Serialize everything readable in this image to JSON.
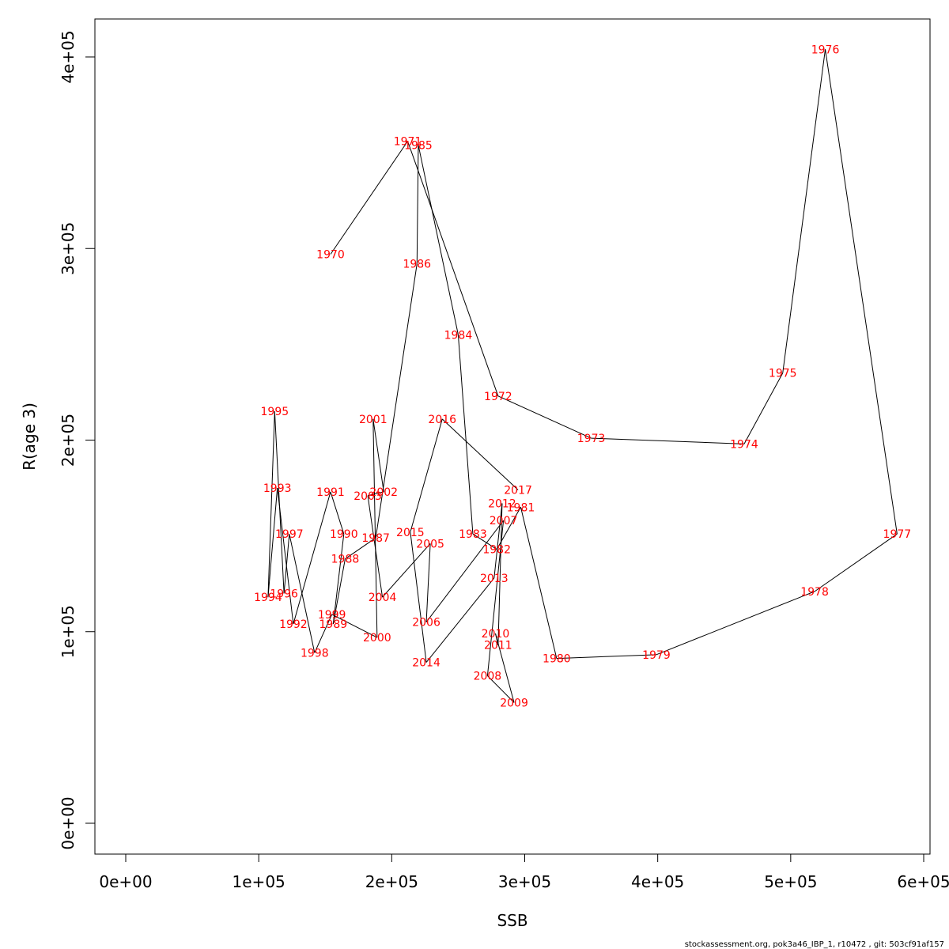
{
  "footer": "stockassessment.org, pok3a46_IBP_1, r10472 , git: 503cf91af157",
  "colors": {
    "points": "#ff0000",
    "line": "#000000",
    "axis": "#000000"
  },
  "chart_data": {
    "type": "line",
    "title": "",
    "xlabel": "SSB",
    "ylabel": "R(age 3)",
    "xlim": [
      0,
      600000
    ],
    "ylim": [
      0,
      400000
    ],
    "x_ticks": [
      0,
      100000,
      200000,
      300000,
      400000,
      500000,
      600000
    ],
    "x_tick_labels": [
      "0e+00",
      "1e+05",
      "2e+05",
      "3e+05",
      "4e+05",
      "5e+05",
      "6e+05"
    ],
    "y_ticks": [
      0,
      100000,
      200000,
      300000,
      400000
    ],
    "y_tick_labels": [
      "0e+00",
      "1e+05",
      "2e+05",
      "3e+05",
      "4e+05"
    ],
    "grid": false,
    "point_labels": "year",
    "points": [
      {
        "year": "1970",
        "x": 154000,
        "y": 297000
      },
      {
        "year": "1971",
        "x": 212000,
        "y": 356000
      },
      {
        "year": "1972",
        "x": 280000,
        "y": 223000
      },
      {
        "year": "1973",
        "x": 350000,
        "y": 201000
      },
      {
        "year": "1974",
        "x": 465000,
        "y": 198000
      },
      {
        "year": "1975",
        "x": 494000,
        "y": 235000
      },
      {
        "year": "1976",
        "x": 526000,
        "y": 404000
      },
      {
        "year": "1977",
        "x": 580000,
        "y": 151000
      },
      {
        "year": "1978",
        "x": 518000,
        "y": 121000
      },
      {
        "year": "1979",
        "x": 399000,
        "y": 88000
      },
      {
        "year": "1980",
        "x": 324000,
        "y": 86000
      },
      {
        "year": "1981",
        "x": 297000,
        "y": 165000
      },
      {
        "year": "1982",
        "x": 279000,
        "y": 143000
      },
      {
        "year": "1983",
        "x": 261000,
        "y": 151000
      },
      {
        "year": "1984",
        "x": 250000,
        "y": 255000
      },
      {
        "year": "1985",
        "x": 220000,
        "y": 354000
      },
      {
        "year": "1986",
        "x": 219000,
        "y": 292000
      },
      {
        "year": "1987",
        "x": 188000,
        "y": 149000
      },
      {
        "year": "1988",
        "x": 165000,
        "y": 138000
      },
      {
        "year": "1989",
        "x": 156000,
        "y": 104000
      },
      {
        "year": "1990",
        "x": 164000,
        "y": 151000
      },
      {
        "year": "1991",
        "x": 154000,
        "y": 173000
      },
      {
        "year": "1992",
        "x": 126000,
        "y": 104000
      },
      {
        "year": "1993",
        "x": 114000,
        "y": 175000
      },
      {
        "year": "1994",
        "x": 107000,
        "y": 118000
      },
      {
        "year": "1995",
        "x": 112000,
        "y": 215000
      },
      {
        "year": "1996",
        "x": 119000,
        "y": 120000
      },
      {
        "year": "1997",
        "x": 123000,
        "y": 151000
      },
      {
        "year": "1998",
        "x": 142000,
        "y": 89000
      },
      {
        "year": "1999",
        "x": 155000,
        "y": 109000
      },
      {
        "year": "2000",
        "x": 189000,
        "y": 97000
      },
      {
        "year": "2001",
        "x": 186000,
        "y": 211000
      },
      {
        "year": "2002",
        "x": 194000,
        "y": 173000
      },
      {
        "year": "2003",
        "x": 182000,
        "y": 171000
      },
      {
        "year": "2004",
        "x": 193000,
        "y": 118000
      },
      {
        "year": "2005",
        "x": 229000,
        "y": 146000
      },
      {
        "year": "2006",
        "x": 226000,
        "y": 105000
      },
      {
        "year": "2007",
        "x": 284000,
        "y": 158000
      },
      {
        "year": "2008",
        "x": 272000,
        "y": 77000
      },
      {
        "year": "2009",
        "x": 292000,
        "y": 63000
      },
      {
        "year": "2010",
        "x": 278000,
        "y": 99000
      },
      {
        "year": "2011",
        "x": 280000,
        "y": 93000
      },
      {
        "year": "2012",
        "x": 283000,
        "y": 167000
      },
      {
        "year": "2013",
        "x": 277000,
        "y": 128000
      },
      {
        "year": "2014",
        "x": 226000,
        "y": 84000
      },
      {
        "year": "2015",
        "x": 214000,
        "y": 152000
      },
      {
        "year": "2016",
        "x": 238000,
        "y": 211000
      },
      {
        "year": "2017",
        "x": 295000,
        "y": 174000
      }
    ]
  }
}
